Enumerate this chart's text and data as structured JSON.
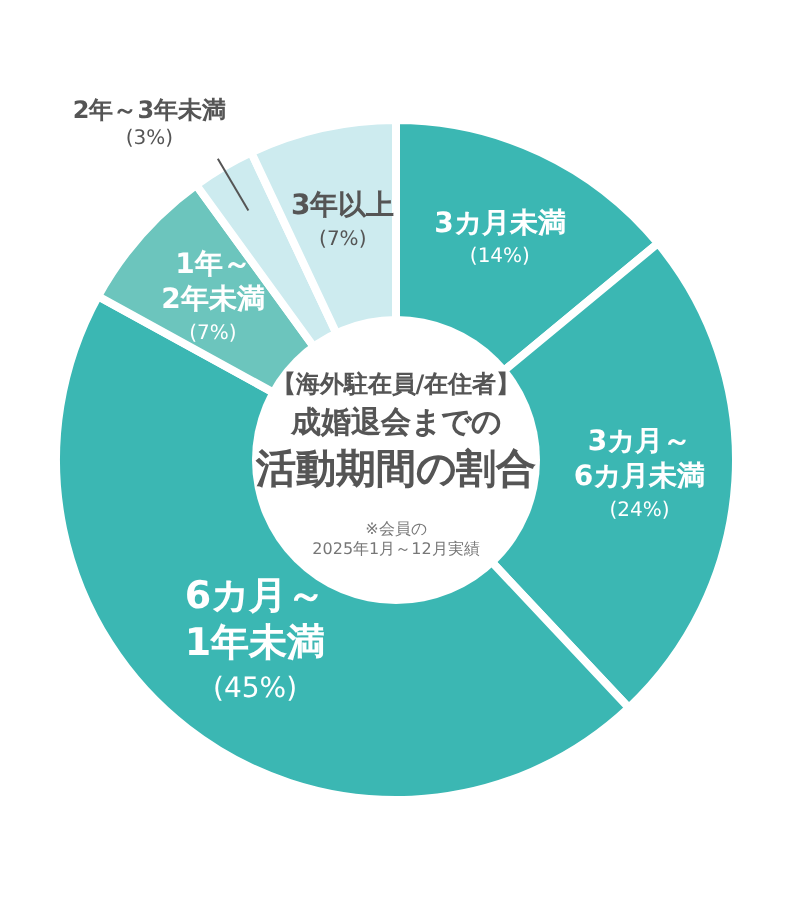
{
  "chart_data": {
    "type": "donut",
    "subtitle": "成婚退会までの",
    "title": "活動期間の割合",
    "categories": [
      "3カ月未満",
      "3カ月～6カ月未満",
      "6カ月～1年未満",
      "1年～2年未満",
      "2年～3年未満",
      "3年以上"
    ],
    "values": [
      14,
      24,
      45,
      7,
      3,
      7
    ],
    "value_labels": [
      "(14%)",
      "(24%)",
      "(45%)",
      "(7%)",
      "(3%)",
      "(7%)"
    ],
    "colors": [
      "#3bb7b3",
      "#3bb7b3",
      "#3bb7b3",
      "#6cc5bd",
      "#cdebef",
      "#cdebef"
    ],
    "annotations": [
      "【海外駐在員/在住者】",
      "※会員の",
      "2025年1月～12月実績"
    ]
  }
}
